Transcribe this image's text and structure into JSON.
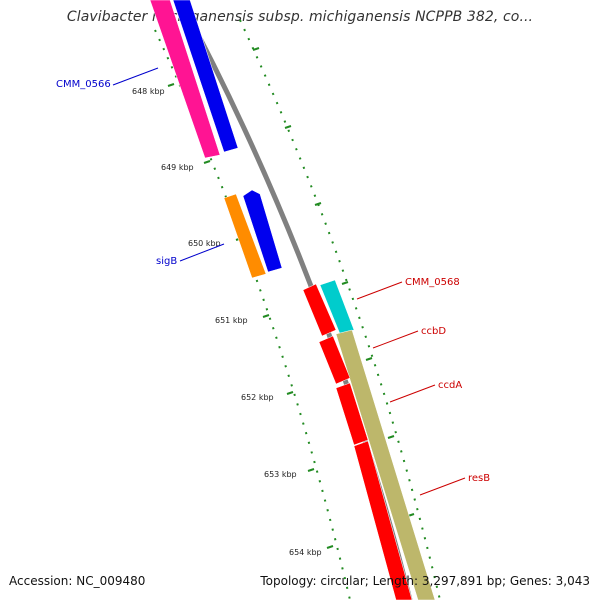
{
  "title": "Clavibacter michiganensis subsp. michiganensis NCPPB 382, co...",
  "footer": {
    "accession": "Accession: NC_009480",
    "summary": "Topology: circular; Length: 3,297,891 bp; Genes: 3,043"
  },
  "colors": {
    "backbone": "#808080",
    "tick": "#228B22",
    "blue_label": "#0000cc",
    "red_label": "#cc0000"
  },
  "ticks": [
    {
      "label": "648 kbp"
    },
    {
      "label": "649 kbp"
    },
    {
      "label": "650 kbp"
    },
    {
      "label": "651 kbp"
    },
    {
      "label": "652 kbp"
    },
    {
      "label": "653 kbp"
    },
    {
      "label": "654 kbp"
    }
  ],
  "genes": [
    {
      "name": "CMM_0566",
      "color": "#0000ee",
      "strand": "forward"
    },
    {
      "name": "",
      "color": "#ff1493",
      "strand": "forward"
    },
    {
      "name": "sigB",
      "color": "#ff8c00",
      "strand": "forward"
    },
    {
      "name": "",
      "color": "#0000ee",
      "strand": "forward"
    },
    {
      "name": "CMM_0568",
      "color": "#00cccc",
      "strand": "reverse"
    },
    {
      "name": "ccbD",
      "color": "#ff0000",
      "strand": "reverse"
    },
    {
      "name": "ccdA",
      "color": "#ff0000",
      "strand": "reverse"
    },
    {
      "name": "resB",
      "color": "#bdb76b",
      "strand": "reverse"
    }
  ],
  "labels": [
    {
      "text": "CMM_0566",
      "color": "#0000cc"
    },
    {
      "text": "sigB",
      "color": "#0000cc"
    },
    {
      "text": "CMM_0568",
      "color": "#cc0000"
    },
    {
      "text": "ccbD",
      "color": "#cc0000"
    },
    {
      "text": "ccdA",
      "color": "#cc0000"
    },
    {
      "text": "resB",
      "color": "#cc0000"
    }
  ]
}
